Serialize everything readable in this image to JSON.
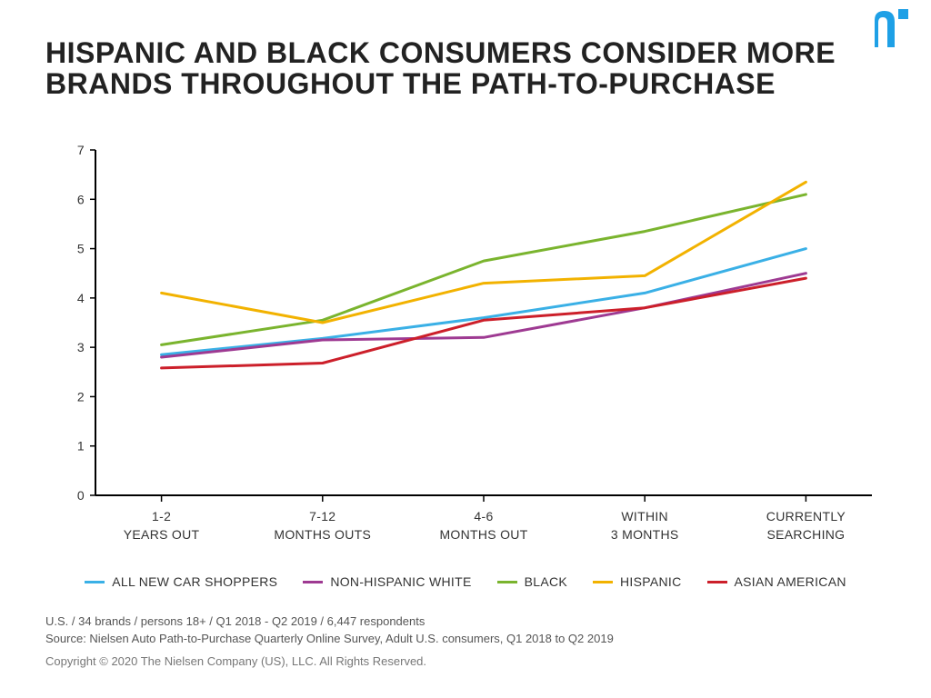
{
  "logo": {
    "color": "#1ea0e6"
  },
  "title": {
    "text": "HISPANIC AND BLACK CONSUMERS CONSIDER MORE BRANDS THROUGHOUT THE PATH-TO-PURCHASE",
    "fontsize": 32,
    "color": "#222222"
  },
  "chart": {
    "type": "line",
    "background": "#ffffff",
    "axis_color": "#000000",
    "axis_width": 2,
    "ylim": [
      0,
      7
    ],
    "ytick_step": 1,
    "tick_fontsize": 14,
    "xlabel_fontsize": 14,
    "line_width": 3,
    "categories": [
      [
        "1-2",
        "YEARS OUT"
      ],
      [
        "7-12",
        "MONTHS OUTS"
      ],
      [
        "4-6",
        "MONTHS OUT"
      ],
      [
        "WITHIN",
        "3 MONTHS"
      ],
      [
        "CURRENTLY",
        "SEARCHING"
      ]
    ],
    "series": [
      {
        "name": "ALL NEW CAR SHOPPERS",
        "color": "#3ab0e6",
        "values": [
          2.85,
          3.18,
          3.6,
          4.1,
          5.0
        ]
      },
      {
        "name": "NON-HISPANIC WHITE",
        "color": "#9e3a92",
        "values": [
          2.8,
          3.15,
          3.2,
          3.8,
          4.5
        ]
      },
      {
        "name": "BLACK",
        "color": "#7ab42e",
        "values": [
          3.05,
          3.55,
          4.75,
          5.35,
          6.1
        ]
      },
      {
        "name": "HISPANIC",
        "color": "#f2b200",
        "values": [
          4.1,
          3.5,
          4.3,
          4.45,
          6.35
        ]
      },
      {
        "name": "ASIAN AMERICAN",
        "color": "#cc1f2a",
        "values": [
          2.58,
          2.68,
          3.55,
          3.8,
          4.4
        ]
      }
    ]
  },
  "legend_fontsize": 14,
  "footer": {
    "line1": "U.S. / 34 brands / persons 18+ / Q1 2018 - Q2 2019 / 6,447 respondents",
    "line2": "Source: Nielsen Auto Path-to-Purchase Quarterly Online Survey, Adult U.S. consumers, Q1 2018 to Q2 2019",
    "copyright": "Copyright © 2020 The Nielsen Company (US), LLC. All Rights Reserved.",
    "fontsize": 13
  }
}
